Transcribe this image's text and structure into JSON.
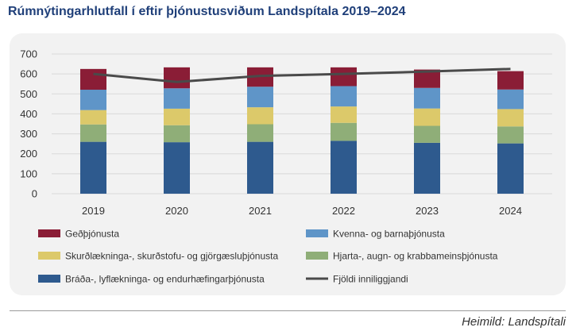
{
  "title": "Rúmnýtingarhlutfall í eftir þjónustusviðum Landspítala 2019–2024",
  "source": "Heimild: Landspítali",
  "chart_data": {
    "type": "bar",
    "stacked": true,
    "categories": [
      "2019",
      "2020",
      "2021",
      "2022",
      "2023",
      "2024"
    ],
    "ylim": [
      0,
      700
    ],
    "yticks": [
      0,
      100,
      200,
      300,
      400,
      500,
      600,
      700
    ],
    "grid": true,
    "legend_position": "bottom",
    "series": [
      {
        "name": "Bráða-, lyflækninga- og endurhæfingarþjónusta",
        "color": "#2e5a8e",
        "values": [
          260,
          258,
          260,
          265,
          255,
          252
        ]
      },
      {
        "name": "Hjarta-, augn- og krabbameinsþjónusta",
        "color": "#8fae78",
        "values": [
          87,
          85,
          88,
          90,
          85,
          85
        ]
      },
      {
        "name": "Skurðlækninga-, skurðstofu- og gjörgæsluþjónusta",
        "color": "#dcc96a",
        "values": [
          72,
          83,
          85,
          82,
          87,
          87
        ]
      },
      {
        "name": "Kvenna- og barnaþjónusta",
        "color": "#5f95c8",
        "values": [
          102,
          102,
          103,
          102,
          103,
          98
        ]
      },
      {
        "name": "Geðþjónusta",
        "color": "#8a1d36",
        "values": [
          104,
          105,
          97,
          94,
          92,
          92
        ]
      }
    ],
    "line_series": {
      "name": "Fjöldi inniliggjandi",
      "color": "#4a4a4a",
      "values": [
        600,
        560,
        590,
        600,
        612,
        625
      ]
    },
    "legend_order": [
      "Geðþjónusta",
      "Kvenna- og barnaþjónusta",
      "Skurðlækninga-, skurðstofu- og gjörgæsluþjónusta",
      "Hjarta-, augn- og krabbameinsþjónusta",
      "Bráða-, lyflækninga- og endurhæfingarþjónusta",
      "Fjöldi inniliggjandi"
    ]
  }
}
